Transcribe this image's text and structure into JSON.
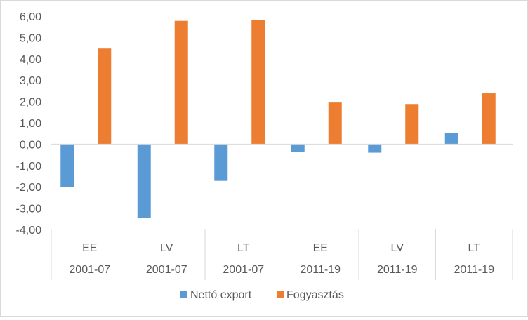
{
  "chart_data": {
    "type": "bar",
    "categories": [
      {
        "top": "EE",
        "bottom": "2001-07"
      },
      {
        "top": "LV",
        "bottom": "2001-07"
      },
      {
        "top": "LT",
        "bottom": "2001-07"
      },
      {
        "top": "EE",
        "bottom": "2011-19"
      },
      {
        "top": "LV",
        "bottom": "2011-19"
      },
      {
        "top": "LT",
        "bottom": "2011-19"
      }
    ],
    "series": [
      {
        "name": "Nettó export",
        "color": "#5b9bd5",
        "values": [
          -2.0,
          -3.45,
          -1.72,
          -0.37,
          -0.4,
          0.52
        ]
      },
      {
        "name": "Fogyasztás",
        "color": "#ed7d31",
        "values": [
          4.48,
          5.78,
          5.82,
          1.95,
          1.88,
          2.38
        ]
      }
    ],
    "ylim": [
      -4.0,
      6.0
    ],
    "yticks": [
      "-4,00",
      "-3,00",
      "-2,00",
      "-1,00",
      "0,00",
      "1,00",
      "2,00",
      "3,00",
      "4,00",
      "5,00",
      "6,00"
    ],
    "grid": false,
    "legend_position": "bottom"
  }
}
